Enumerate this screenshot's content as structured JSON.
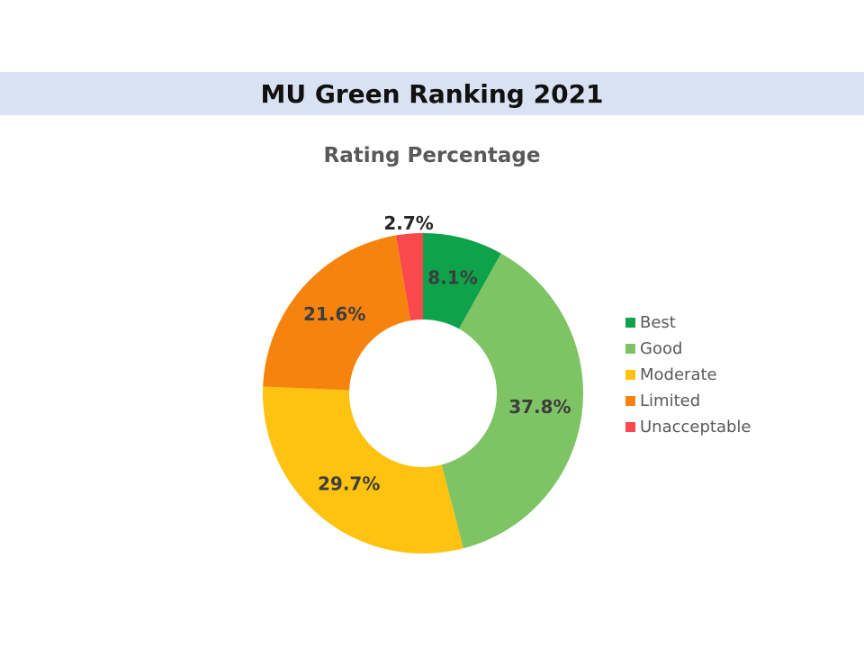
{
  "slide": {
    "title": "MU Green Ranking 2021",
    "title_color": "#111111",
    "band_color": "#d9e2f3",
    "background_color": "#ffffff"
  },
  "chart_data": {
    "type": "pie",
    "subtype": "donut",
    "title": "Rating Percentage",
    "title_color": "#595959",
    "categories": [
      "Best",
      "Good",
      "Moderate",
      "Limited",
      "Unacceptable"
    ],
    "values": [
      8.1,
      37.8,
      29.7,
      21.6,
      2.7
    ],
    "labels": [
      "8.1%",
      "37.8%",
      "29.7%",
      "21.6%",
      "2.7%"
    ],
    "colors": [
      "#0ea24b",
      "#7ec465",
      "#fec211",
      "#f6830e",
      "#f9494c"
    ],
    "start_angle_deg": 0,
    "direction": "clockwise",
    "donut_hole_ratio": 0.46,
    "legend_position": "right",
    "legend": [
      "Best",
      "Good",
      "Moderate",
      "Limited",
      "Unacceptable"
    ],
    "legend_text_color": "#595959",
    "label_color_inside": "#3d3d3d",
    "label_color_outside": "#262626",
    "outside_label_categories": [
      "Unacceptable"
    ]
  }
}
